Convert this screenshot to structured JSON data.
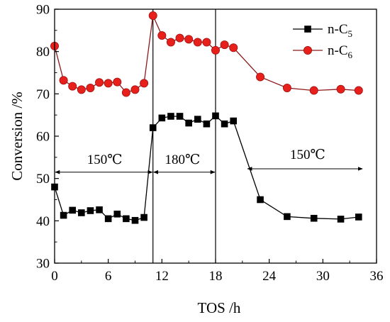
{
  "chart_data": {
    "type": "line",
    "xlabel": "TOS /h",
    "ylabel": "Conversion /%",
    "xlim": [
      0,
      36
    ],
    "ylim": [
      30,
      90
    ],
    "xticks": [
      0,
      6,
      12,
      18,
      24,
      30,
      36
    ],
    "yticks": [
      30,
      40,
      50,
      60,
      70,
      80,
      90
    ],
    "grid": false,
    "legend_position": "top-right",
    "series": [
      {
        "name": "n-C5",
        "name_base": "n-C",
        "name_sub": "5",
        "color": "#000000",
        "marker": "square",
        "points": [
          [
            0,
            48.0
          ],
          [
            1,
            41.3
          ],
          [
            2,
            42.5
          ],
          [
            3,
            41.9
          ],
          [
            4,
            42.4
          ],
          [
            5,
            42.6
          ],
          [
            6,
            40.5
          ],
          [
            7,
            41.6
          ],
          [
            8,
            40.5
          ],
          [
            9,
            40.1
          ],
          [
            10,
            40.8
          ],
          [
            11,
            62.0
          ],
          [
            12,
            64.3
          ],
          [
            13,
            64.7
          ],
          [
            14,
            64.7
          ],
          [
            15,
            63.1
          ],
          [
            16,
            64.0
          ],
          [
            17,
            62.9
          ],
          [
            18,
            64.8
          ],
          [
            19,
            62.9
          ],
          [
            20,
            63.6
          ],
          [
            23,
            45.0
          ],
          [
            26,
            41.0
          ],
          [
            29,
            40.6
          ],
          [
            32,
            40.4
          ],
          [
            34,
            40.9
          ]
        ]
      },
      {
        "name": "n-C6",
        "name_base": "n-C",
        "name_sub": "6",
        "color": "#e8201c",
        "line_color": "#8b1a1a",
        "marker": "circle",
        "points": [
          [
            0,
            81.3
          ],
          [
            1,
            73.2
          ],
          [
            2,
            71.8
          ],
          [
            3,
            71.0
          ],
          [
            4,
            71.4
          ],
          [
            5,
            72.7
          ],
          [
            6,
            72.5
          ],
          [
            7,
            72.8
          ],
          [
            8,
            70.3
          ],
          [
            9,
            71.0
          ],
          [
            10,
            72.5
          ],
          [
            11,
            88.5
          ],
          [
            12,
            83.8
          ],
          [
            13,
            82.2
          ],
          [
            14,
            83.2
          ],
          [
            15,
            82.9
          ],
          [
            16,
            82.2
          ],
          [
            17,
            82.2
          ],
          [
            18,
            80.3
          ],
          [
            19,
            81.6
          ],
          [
            20,
            80.9
          ],
          [
            23,
            74.0
          ],
          [
            26,
            71.4
          ],
          [
            29,
            70.8
          ],
          [
            32,
            71.1
          ],
          [
            34,
            70.8
          ]
        ]
      }
    ],
    "vlines": [
      11,
      18
    ],
    "annotations": [
      {
        "text": "150℃",
        "x_from": 0,
        "x_to": 11,
        "y": 51.5,
        "label_x": 5.6,
        "label_y": 53.5
      },
      {
        "text": "180℃",
        "x_from": 11,
        "x_to": 18,
        "y": 51.5,
        "label_x": 14.3,
        "label_y": 53.5
      },
      {
        "text": "150℃",
        "x_from": 21.5,
        "x_to": 34.5,
        "y": 52.3,
        "label_x": 28.3,
        "label_y": 54.6
      }
    ]
  }
}
